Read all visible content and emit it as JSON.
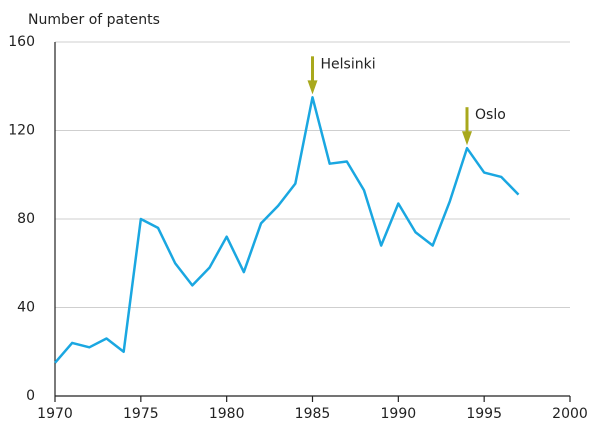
{
  "chart_data": {
    "type": "line",
    "y_axis_label": "Number of patents",
    "x": [
      1970,
      1971,
      1972,
      1973,
      1974,
      1975,
      1976,
      1977,
      1978,
      1979,
      1980,
      1981,
      1982,
      1983,
      1984,
      1985,
      1986,
      1987,
      1988,
      1989,
      1990,
      1991,
      1992,
      1993,
      1994,
      1995,
      1996,
      1997
    ],
    "series": [
      {
        "color": "#1aa7e1",
        "values": [
          15,
          24,
          22,
          26,
          20,
          80,
          76,
          60,
          50,
          58,
          72,
          56,
          78,
          86,
          96,
          135,
          105,
          106,
          93,
          68,
          87,
          74,
          68,
          88,
          112,
          101,
          99,
          91
        ]
      }
    ],
    "annotations": [
      {
        "text": "Helsinki",
        "x": 1985,
        "y": 135
      },
      {
        "text": "Oslo",
        "x": 1994,
        "y": 112
      }
    ],
    "annotation_color": "#a8a81c",
    "xlim": [
      1970,
      2000
    ],
    "xticks": [
      1970,
      1975,
      1980,
      1985,
      1990,
      1995,
      2000
    ],
    "ylim": [
      0,
      160
    ],
    "yticks": [
      0,
      40,
      80,
      120,
      160
    ],
    "grid": true
  }
}
